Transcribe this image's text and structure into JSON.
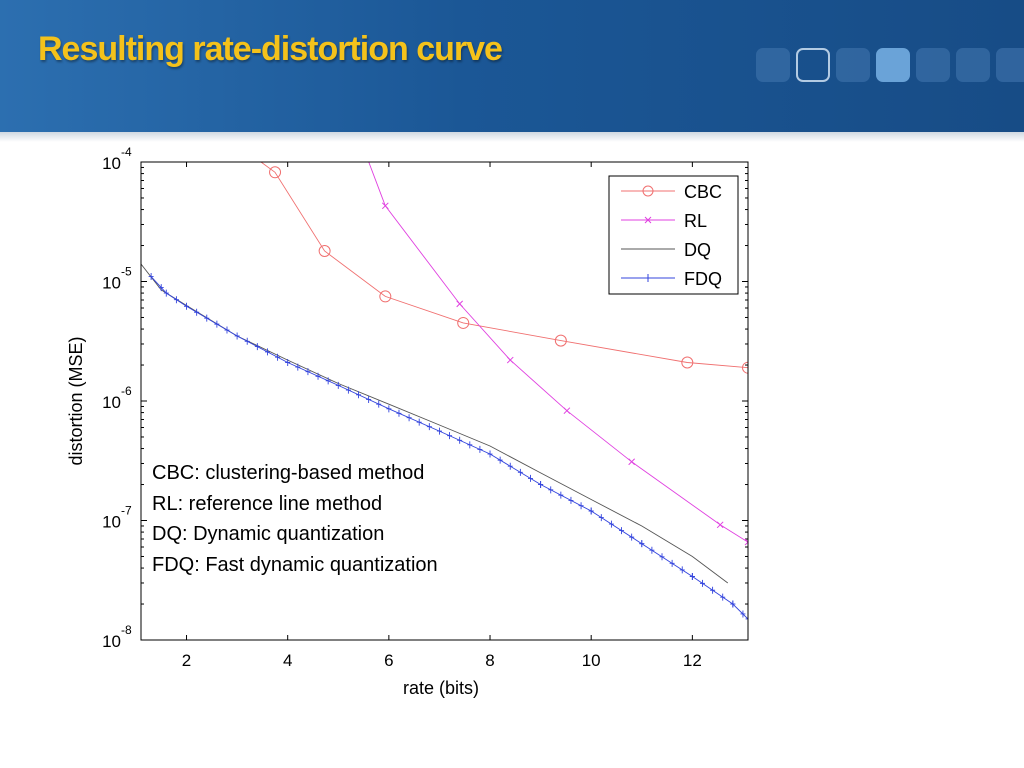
{
  "slide": {
    "title": "Resulting rate-distortion curve",
    "banner_color": "#1b5796",
    "title_color": "#f4c21b"
  },
  "chart_data": {
    "type": "line",
    "xlabel": "rate (bits)",
    "ylabel": "distortion (MSE)",
    "xlim": [
      1.1,
      13.1
    ],
    "ylim": [
      1e-08,
      0.0001
    ],
    "yscale": "log",
    "x_ticks": [
      2,
      4,
      6,
      8,
      10,
      12
    ],
    "y_ticks": [
      {
        "value": 1e-08,
        "base": "10",
        "exp": "-8"
      },
      {
        "value": 1e-07,
        "base": "10",
        "exp": "-7"
      },
      {
        "value": 1e-06,
        "base": "10",
        "exp": "-6"
      },
      {
        "value": 1e-05,
        "base": "10",
        "exp": "-5"
      },
      {
        "value": 0.0001,
        "base": "10",
        "exp": "-4"
      }
    ],
    "legend_position": "top-right",
    "series": [
      {
        "name": "CBC",
        "color": "#f07070",
        "marker": "circle",
        "x": [
          3.0,
          3.75,
          4.73,
          5.93,
          7.47,
          9.4,
          11.9,
          13.1
        ],
        "y": [
          0.00014,
          8.2e-05,
          1.8e-05,
          7.5e-06,
          4.5e-06,
          3.2e-06,
          2.1e-06,
          1.9e-06
        ]
      },
      {
        "name": "RL",
        "color": "#e040e0",
        "marker": "x",
        "x": [
          5.5,
          5.93,
          7.4,
          8.4,
          9.52,
          10.8,
          12.55,
          13.1
        ],
        "y": [
          0.00013,
          4.3e-05,
          6.5e-06,
          2.2e-06,
          8.3e-07,
          3.1e-07,
          9.2e-08,
          6.6e-08
        ]
      },
      {
        "name": "DQ",
        "color": "#555555",
        "marker": "none",
        "x": [
          1.1,
          1.5,
          2.0,
          3.0,
          4.0,
          5.0,
          6.0,
          7.0,
          8.0,
          9.0,
          10.0,
          11.0,
          12.0,
          12.7
        ],
        "y": [
          1.4e-05,
          8.5e-06,
          6.3e-06,
          3.5e-06,
          2.2e-06,
          1.4e-06,
          9.4e-07,
          6.3e-07,
          4.2e-07,
          2.5e-07,
          1.5e-07,
          9e-08,
          5e-08,
          3e-08
        ]
      },
      {
        "name": "FDQ",
        "color": "#3344dd",
        "marker": "plus",
        "x": [
          1.3,
          1.6,
          2.0,
          3.0,
          4.0,
          5.0,
          6.0,
          7.0,
          8.0,
          9.0,
          10.0,
          11.0,
          12.0,
          12.8,
          13.1
        ],
        "y": [
          1.1e-05,
          8e-06,
          6.2e-06,
          3.5e-06,
          2.1e-06,
          1.35e-06,
          8.6e-07,
          5.6e-07,
          3.6e-07,
          2e-07,
          1.2e-07,
          6.4e-08,
          3.4e-08,
          2e-08,
          1.5e-08
        ]
      }
    ],
    "annotations": [
      "CBC: clustering-based method",
      "RL: reference line method",
      "DQ: Dynamic quantization",
      "FDQ: Fast dynamic quantization"
    ]
  }
}
